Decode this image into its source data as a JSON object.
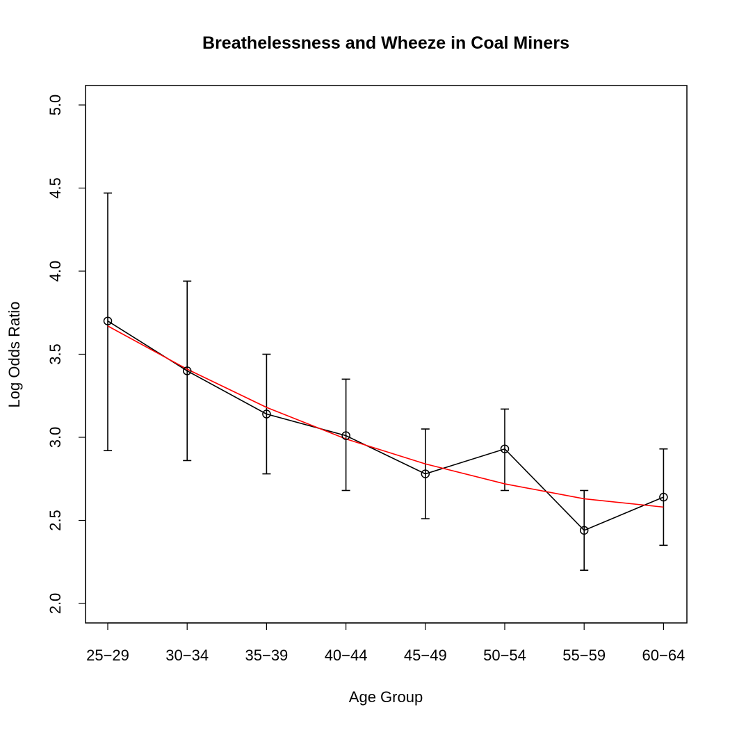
{
  "chart_data": {
    "type": "line",
    "title": "Breathelessness and Wheeze in Coal Miners",
    "xlabel": "Age Group",
    "ylabel": "Log Odds Ratio",
    "categories": [
      "25−29",
      "30−34",
      "35−39",
      "40−44",
      "45−49",
      "50−54",
      "55−59",
      "60−64"
    ],
    "ylim": [
      2.0,
      5.0
    ],
    "y_ticks": [
      "2.0",
      "2.5",
      "3.0",
      "3.5",
      "4.0",
      "4.5",
      "5.0"
    ],
    "grid": false,
    "series": [
      {
        "kind": "observed",
        "values": [
          3.7,
          3.4,
          3.14,
          3.01,
          2.78,
          2.93,
          2.44,
          2.64
        ],
        "lower": [
          2.92,
          2.86,
          2.78,
          2.68,
          2.51,
          2.68,
          2.2,
          2.35
        ],
        "upper": [
          4.47,
          3.94,
          3.5,
          3.35,
          3.05,
          3.17,
          2.68,
          2.93
        ],
        "color": "#000000",
        "marker": "open-circle"
      },
      {
        "kind": "fitted",
        "values": [
          3.67,
          3.41,
          3.18,
          2.99,
          2.84,
          2.72,
          2.63,
          2.58
        ],
        "color": "#ff0000"
      }
    ]
  }
}
